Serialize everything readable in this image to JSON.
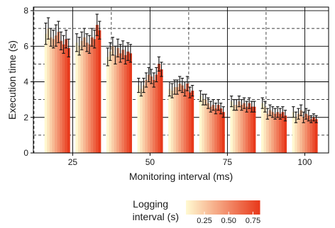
{
  "chart_data": {
    "type": "bar",
    "xlabel": "Monitoring interval (ms)",
    "ylabel": "Execution time (s)",
    "x_ticks": [
      25,
      50,
      75,
      100
    ],
    "y_ticks": [
      0,
      2,
      4,
      6,
      8
    ],
    "ylim": [
      0,
      8.2
    ],
    "grid": true,
    "legend": {
      "title_lines": [
        "Logging",
        "interval (s)"
      ],
      "labels": [
        "0.25",
        "0.50",
        "0.75"
      ],
      "position": "bottom",
      "color_low": "#fff8d0",
      "color_high": "#e83a1c"
    },
    "groups": [
      {
        "monitoring_interval": 20,
        "values": [
          6.7,
          7.0,
          6.5,
          6.4,
          6.6,
          6.8,
          6.3,
          6.1,
          6.4,
          5.9
        ],
        "errors": [
          0.6,
          0.6,
          0.5,
          0.5,
          0.6,
          0.6,
          0.5,
          0.5,
          0.5,
          0.5
        ]
      },
      {
        "monitoring_interval": 30,
        "values": [
          6.2,
          6.0,
          6.3,
          6.5,
          6.2,
          6.1,
          6.5,
          6.4,
          7.2,
          6.9
        ],
        "errors": [
          0.5,
          0.5,
          0.5,
          0.5,
          0.5,
          0.5,
          0.5,
          0.5,
          0.6,
          0.5
        ]
      },
      {
        "monitoring_interval": 40,
        "values": [
          5.4,
          5.7,
          6.0,
          5.5,
          5.9,
          5.6,
          5.8,
          5.5,
          5.7,
          5.6
        ],
        "errors": [
          0.5,
          0.5,
          0.5,
          0.5,
          0.5,
          0.5,
          0.5,
          0.5,
          0.5,
          0.5
        ]
      },
      {
        "monitoring_interval": 50,
        "values": [
          3.8,
          3.6,
          3.8,
          4.1,
          4.4,
          4.3,
          4.1,
          4.4,
          5.0,
          4.7
        ],
        "errors": [
          0.4,
          0.4,
          0.4,
          0.4,
          0.4,
          0.4,
          0.4,
          0.4,
          0.4,
          0.4
        ]
      },
      {
        "monitoring_interval": 60,
        "values": [
          3.6,
          3.5,
          3.7,
          3.7,
          3.9,
          3.8,
          3.6,
          3.9,
          3.4,
          3.5
        ],
        "errors": [
          0.4,
          0.4,
          0.4,
          0.4,
          0.4,
          0.4,
          0.4,
          0.4,
          0.3,
          0.3
        ]
      },
      {
        "monitoring_interval": 70,
        "values": [
          3.2,
          3.0,
          3.0,
          2.8,
          2.6,
          2.7,
          2.5,
          2.7,
          2.5,
          2.3
        ],
        "errors": [
          0.3,
          0.3,
          0.3,
          0.3,
          0.3,
          0.3,
          0.3,
          0.3,
          0.3,
          0.3
        ]
      },
      {
        "monitoring_interval": 80,
        "values": [
          2.9,
          2.7,
          2.7,
          2.9,
          2.7,
          2.8,
          2.6,
          2.8,
          2.6,
          2.6
        ],
        "errors": [
          0.3,
          0.3,
          0.3,
          0.3,
          0.3,
          0.3,
          0.3,
          0.3,
          0.3,
          0.3
        ]
      },
      {
        "monitoring_interval": 90,
        "values": [
          2.8,
          2.6,
          2.2,
          2.4,
          2.3,
          2.2,
          2.3,
          2.2,
          2.3,
          2.1
        ],
        "errors": [
          0.3,
          0.3,
          0.3,
          0.3,
          0.3,
          0.3,
          0.3,
          0.3,
          0.3,
          0.3
        ]
      },
      {
        "monitoring_interval": 100,
        "values": [
          2.3,
          2.0,
          2.2,
          2.4,
          2.0,
          2.2,
          2.1,
          1.9,
          2.0,
          1.9
        ],
        "errors": [
          0.3,
          0.3,
          0.3,
          0.3,
          0.3,
          0.3,
          0.3,
          0.2,
          0.2,
          0.2
        ]
      }
    ]
  }
}
